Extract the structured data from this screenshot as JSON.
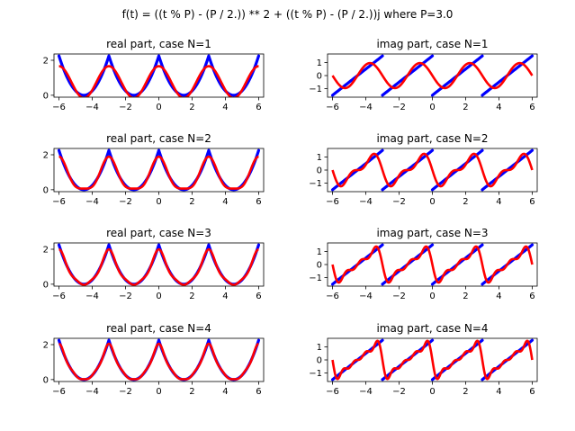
{
  "figure": {
    "suptitle": "f(t) = ((t % P) - (P / 2.)) ** 2 + ((t % P) - (P / 2.))j where P=3.0"
  },
  "chart_data": [
    {
      "type": "line",
      "title": "real part, case N=1",
      "part": "real",
      "N": 1,
      "xlim": [
        -6.3,
        6.3
      ],
      "ylim": [
        -0.11,
        2.36
      ],
      "xticks": [
        -6,
        -4,
        -2,
        0,
        2,
        4,
        6
      ],
      "yticks": [
        0,
        2
      ],
      "series": [
        {
          "role": "original",
          "color": "#0000ff",
          "t_range": [
            -6,
            6
          ],
          "P": 3.0,
          "function": "real"
        },
        {
          "role": "approximation",
          "color": "#ff0000",
          "fourier_terms": 1
        }
      ]
    },
    {
      "type": "line",
      "title": "imag part, case N=1",
      "part": "imag",
      "N": 1,
      "xlim": [
        -6.3,
        6.3
      ],
      "ylim": [
        -1.65,
        1.65
      ],
      "xticks": [
        -6,
        -4,
        -2,
        0,
        2,
        4,
        6
      ],
      "yticks": [
        -1,
        0,
        1
      ],
      "series": [
        {
          "role": "original",
          "color": "#0000ff",
          "t_range": [
            -6,
            6
          ],
          "P": 3.0,
          "function": "imag"
        },
        {
          "role": "approximation",
          "color": "#ff0000",
          "fourier_terms": 1
        }
      ]
    },
    {
      "type": "line",
      "title": "real part, case N=2",
      "part": "real",
      "N": 2,
      "xlim": [
        -6.3,
        6.3
      ],
      "ylim": [
        -0.11,
        2.36
      ],
      "xticks": [
        -6,
        -4,
        -2,
        0,
        2,
        4,
        6
      ],
      "yticks": [
        0,
        2
      ],
      "series": [
        {
          "role": "original",
          "color": "#0000ff",
          "t_range": [
            -6,
            6
          ],
          "P": 3.0,
          "function": "real"
        },
        {
          "role": "approximation",
          "color": "#ff0000",
          "fourier_terms": 2
        }
      ]
    },
    {
      "type": "line",
      "title": "imag part, case N=2",
      "part": "imag",
      "N": 2,
      "xlim": [
        -6.3,
        6.3
      ],
      "ylim": [
        -1.65,
        1.65
      ],
      "xticks": [
        -6,
        -4,
        -2,
        0,
        2,
        4,
        6
      ],
      "yticks": [
        -1,
        0,
        1
      ],
      "series": [
        {
          "role": "original",
          "color": "#0000ff",
          "t_range": [
            -6,
            6
          ],
          "P": 3.0,
          "function": "imag"
        },
        {
          "role": "approximation",
          "color": "#ff0000",
          "fourier_terms": 2
        }
      ]
    },
    {
      "type": "line",
      "title": "real part, case N=3",
      "part": "real",
      "N": 3,
      "xlim": [
        -6.3,
        6.3
      ],
      "ylim": [
        -0.11,
        2.36
      ],
      "xticks": [
        -6,
        -4,
        -2,
        0,
        2,
        4,
        6
      ],
      "yticks": [
        0,
        2
      ],
      "series": [
        {
          "role": "original",
          "color": "#0000ff",
          "t_range": [
            -6,
            6
          ],
          "P": 3.0,
          "function": "real"
        },
        {
          "role": "approximation",
          "color": "#ff0000",
          "fourier_terms": 3
        }
      ]
    },
    {
      "type": "line",
      "title": "imag part, case N=3",
      "part": "imag",
      "N": 3,
      "xlim": [
        -6.3,
        6.3
      ],
      "ylim": [
        -1.65,
        1.65
      ],
      "xticks": [
        -6,
        -4,
        -2,
        0,
        2,
        4,
        6
      ],
      "yticks": [
        -1,
        0,
        1
      ],
      "series": [
        {
          "role": "original",
          "color": "#0000ff",
          "t_range": [
            -6,
            6
          ],
          "P": 3.0,
          "function": "imag"
        },
        {
          "role": "approximation",
          "color": "#ff0000",
          "fourier_terms": 3
        }
      ]
    },
    {
      "type": "line",
      "title": "real part, case N=4",
      "part": "real",
      "N": 4,
      "xlim": [
        -6.3,
        6.3
      ],
      "ylim": [
        -0.11,
        2.36
      ],
      "xticks": [
        -6,
        -4,
        -2,
        0,
        2,
        4,
        6
      ],
      "yticks": [
        0,
        2
      ],
      "series": [
        {
          "role": "original",
          "color": "#0000ff",
          "t_range": [
            -6,
            6
          ],
          "P": 3.0,
          "function": "real"
        },
        {
          "role": "approximation",
          "color": "#ff0000",
          "fourier_terms": 4
        }
      ]
    },
    {
      "type": "line",
      "title": "imag part, case N=4",
      "part": "imag",
      "N": 4,
      "xlim": [
        -6.3,
        6.3
      ],
      "ylim": [
        -1.65,
        1.65
      ],
      "xticks": [
        -6,
        -4,
        -2,
        0,
        2,
        4,
        6
      ],
      "yticks": [
        -1,
        0,
        1
      ],
      "series": [
        {
          "role": "original",
          "color": "#0000ff",
          "t_range": [
            -6,
            6
          ],
          "P": 3.0,
          "function": "imag"
        },
        {
          "role": "approximation",
          "color": "#ff0000",
          "fourier_terms": 4
        }
      ]
    }
  ]
}
